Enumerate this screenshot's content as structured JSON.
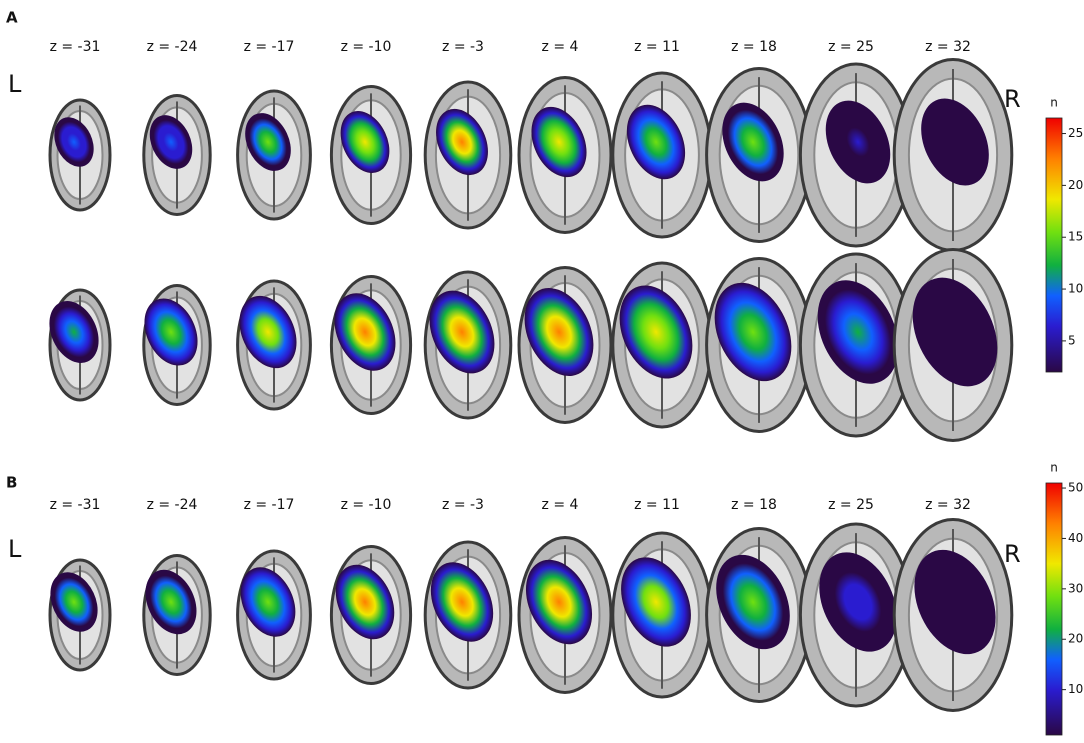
{
  "panels": [
    {
      "label": "A",
      "slices": [
        "z = -31",
        "z = -24",
        "z = -17",
        "z = -10",
        "z = -3",
        "z = 4",
        "z = 11",
        "z = 18",
        "z = 25",
        "z = 32"
      ],
      "left_label": "L",
      "right_label": "R",
      "colorbar": {
        "title": "n",
        "lim": [
          2,
          26.5
        ],
        "ticks": [
          5,
          10,
          15,
          20,
          25
        ]
      }
    },
    {
      "label": "B",
      "slices": [
        "z = -31",
        "z = -24",
        "z = -17",
        "z = -10",
        "z = -3",
        "z = 4",
        "z = 11",
        "z = 18",
        "z = 25",
        "z = 32"
      ],
      "left_label": "L",
      "right_label": "R",
      "colorbar": {
        "title": "n",
        "lim": [
          1,
          51
        ],
        "ticks": [
          10,
          20,
          30,
          40,
          50
        ]
      }
    }
  ]
}
